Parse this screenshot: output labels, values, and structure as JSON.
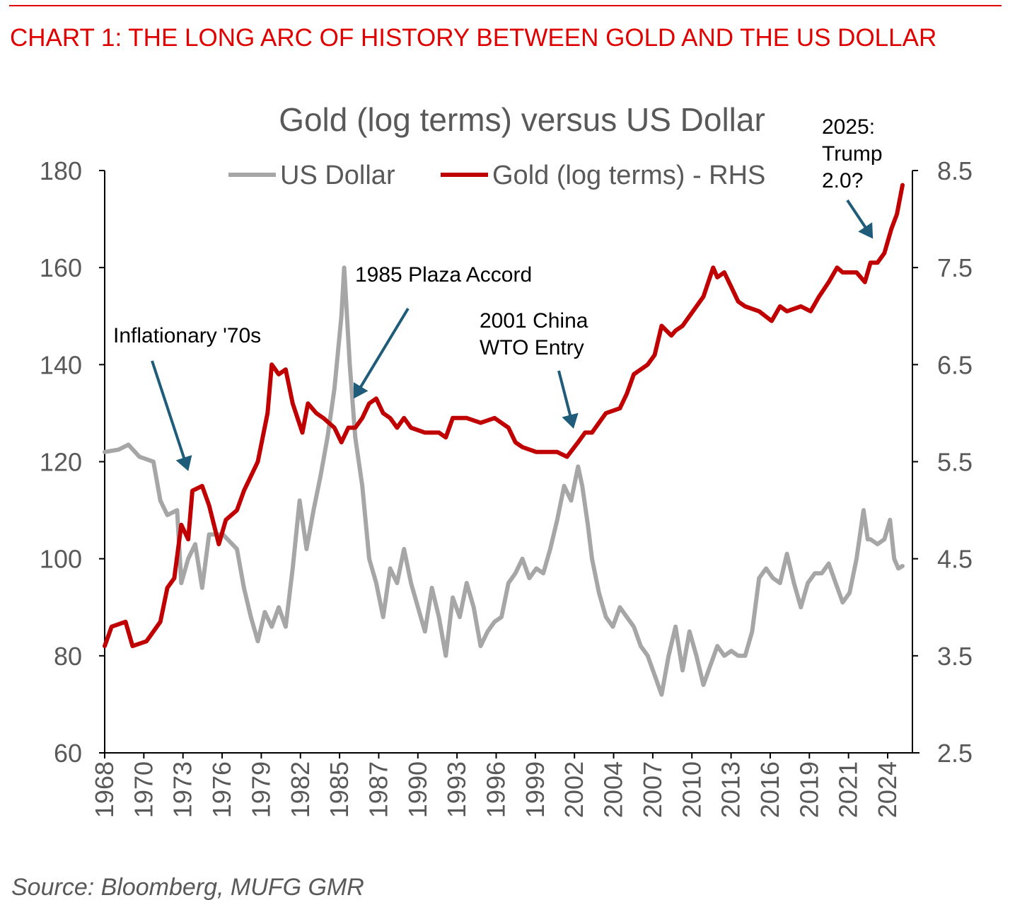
{
  "header": "CHART 1: THE LONG ARC OF HISTORY BETWEEN GOLD AND THE US DOLLAR",
  "source": "Source: Bloomberg, MUFG GMR",
  "colors": {
    "header": "#e00000",
    "usd": "#a6a6a6",
    "gold": "#c00000",
    "arrow": "#1f5c7a",
    "tick_text": "#595959"
  },
  "chart_data": {
    "type": "line",
    "title": "Gold (log terms) versus US Dollar",
    "legend_position": "top",
    "grid": false,
    "x_tick_labels": [
      "1968",
      "1970",
      "1973",
      "1976",
      "1979",
      "1982",
      "1985",
      "1987",
      "1990",
      "1993",
      "1996",
      "1999",
      "2002",
      "2004",
      "2007",
      "2010",
      "2013",
      "2016",
      "2019",
      "2021",
      "2024"
    ],
    "xlim": [
      1968,
      2025.3
    ],
    "y_left": {
      "ylim": [
        60,
        180
      ],
      "ticks": [
        "60",
        "80",
        "100",
        "120",
        "140",
        "160",
        "180"
      ]
    },
    "y_right": {
      "ylim": [
        2.5,
        8.5
      ],
      "ticks": [
        "2.5",
        "3.5",
        "4.5",
        "5.5",
        "6.5",
        "7.5",
        "8.5"
      ]
    },
    "series": [
      {
        "name": "US Dollar",
        "axis": "left",
        "x": [
          1968,
          1969,
          1969.7,
          1970.5,
          1971.5,
          1972,
          1972.5,
          1973.2,
          1973.5,
          1974,
          1974.5,
          1975,
          1975.5,
          1976.5,
          1977.5,
          1978,
          1978.5,
          1979,
          1979.5,
          1980,
          1980.5,
          1981,
          1981.5,
          1982,
          1982.5,
          1983,
          1983.5,
          1984,
          1984.5,
          1985,
          1985.2,
          1985.6,
          1986,
          1986.5,
          1987,
          1987.5,
          1988,
          1988.5,
          1989,
          1989.5,
          1990,
          1990.5,
          1991,
          1991.5,
          1992,
          1992.5,
          1993,
          1993.5,
          1994,
          1994.5,
          1995,
          1995.5,
          1996,
          1996.5,
          1997,
          1997.5,
          1998,
          1998.5,
          1999,
          1999.5,
          2000,
          2000.5,
          2001,
          2001.5,
          2002,
          2002.3,
          2002.7,
          2003,
          2003.5,
          2004,
          2004.5,
          2005,
          2005.5,
          2006,
          2006.5,
          2007,
          2007.5,
          2008,
          2008.5,
          2009,
          2009.5,
          2010,
          2010.5,
          2011,
          2011.5,
          2012,
          2012.5,
          2013,
          2013.5,
          2014,
          2014.5,
          2015,
          2015.5,
          2016,
          2016.5,
          2017,
          2017.5,
          2018,
          2018.5,
          2019,
          2019.5,
          2020,
          2020.5,
          2021,
          2021.5,
          2022,
          2022.5,
          2022.8,
          2023,
          2023.5,
          2024,
          2024.4,
          2024.7,
          2025,
          2025.3
        ],
        "y": [
          122,
          122.5,
          123.5,
          121,
          120,
          112,
          109,
          110,
          95,
          100,
          103,
          94,
          105,
          105,
          102,
          94,
          88,
          83,
          89,
          86,
          90,
          86,
          98,
          112,
          102,
          110,
          117,
          125,
          135,
          150,
          160,
          140,
          125,
          115,
          100,
          95,
          88,
          98,
          95,
          102,
          95,
          90,
          85,
          94,
          88,
          80,
          92,
          88,
          95,
          90,
          82,
          85,
          87,
          88,
          95,
          97,
          100,
          96,
          98,
          97,
          102,
          108,
          115,
          112,
          119,
          115,
          107,
          100,
          93,
          88,
          86,
          90,
          88,
          86,
          82,
          80,
          76,
          72,
          80,
          86,
          77,
          85,
          80,
          74,
          78,
          82,
          80,
          81,
          80,
          80,
          85,
          96,
          98,
          96,
          95,
          101,
          95,
          90,
          95,
          97,
          97,
          99,
          95,
          91,
          93,
          100,
          110,
          104,
          104,
          103,
          104,
          108,
          100,
          98,
          98.5
        ]
      },
      {
        "name": "Gold (log terms) - RHS",
        "axis": "right",
        "x": [
          1968,
          1968.5,
          1969.5,
          1970,
          1971,
          1972,
          1972.5,
          1973,
          1973.5,
          1974,
          1974.3,
          1975,
          1975.5,
          1976.2,
          1976.7,
          1977.5,
          1978,
          1979,
          1979.7,
          1980,
          1980.5,
          1981,
          1981.5,
          1982.2,
          1982.6,
          1983.2,
          1983.7,
          1984.5,
          1985,
          1985.5,
          1986,
          1986.5,
          1987,
          1987.5,
          1988,
          1988.5,
          1989,
          1989.5,
          1990,
          1991,
          1992,
          1992.5,
          1993,
          1994,
          1995,
          1996,
          1997,
          1997.5,
          1998,
          1999,
          1999.7,
          2000.5,
          2001.2,
          2002,
          2002.5,
          2003,
          2003.5,
          2004,
          2005,
          2005.5,
          2006,
          2007,
          2007.5,
          2008,
          2008.7,
          2009,
          2009.5,
          2010,
          2011,
          2011.7,
          2012,
          2012.5,
          2013,
          2013.5,
          2014,
          2015,
          2015.9,
          2016.5,
          2017,
          2018,
          2018.7,
          2019.3,
          2020,
          2020.6,
          2021,
          2022,
          2022.6,
          2023,
          2023.5,
          2024,
          2024.5,
          2024.9,
          2025.3
        ],
        "y": [
          3.6,
          3.8,
          3.85,
          3.6,
          3.65,
          3.85,
          4.2,
          4.3,
          4.85,
          4.7,
          5.2,
          5.25,
          5.05,
          4.65,
          4.9,
          5.0,
          5.2,
          5.5,
          6.0,
          6.5,
          6.4,
          6.45,
          6.1,
          5.8,
          6.1,
          6.0,
          5.95,
          5.85,
          5.7,
          5.85,
          5.85,
          5.95,
          6.1,
          6.15,
          6.0,
          5.95,
          5.85,
          5.95,
          5.85,
          5.8,
          5.8,
          5.75,
          5.95,
          5.95,
          5.9,
          5.95,
          5.85,
          5.7,
          5.65,
          5.6,
          5.6,
          5.6,
          5.55,
          5.7,
          5.8,
          5.8,
          5.9,
          6.0,
          6.05,
          6.2,
          6.4,
          6.5,
          6.6,
          6.9,
          6.8,
          6.85,
          6.9,
          7.0,
          7.2,
          7.5,
          7.4,
          7.45,
          7.3,
          7.15,
          7.1,
          7.05,
          6.95,
          7.1,
          7.05,
          7.1,
          7.05,
          7.2,
          7.35,
          7.5,
          7.45,
          7.45,
          7.35,
          7.55,
          7.55,
          7.65,
          7.9,
          8.05,
          8.35
        ]
      }
    ],
    "annotations": [
      {
        "lines": [
          "Inflationary '70s"
        ],
        "points_to": 1973.5
      },
      {
        "lines": [
          "1985 Plaza Accord"
        ],
        "points_to": 1985.6
      },
      {
        "lines": [
          "2001 China",
          "WTO Entry"
        ],
        "points_to": 2001.8
      },
      {
        "lines": [
          "2025:",
          "Trump",
          "2.0?"
        ],
        "points_to": 2023.5
      }
    ]
  }
}
